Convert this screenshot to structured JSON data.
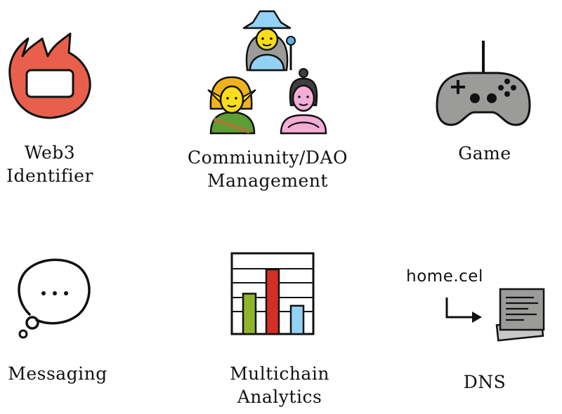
{
  "items": [
    {
      "label_lines": [
        "Web3",
        "Identifier"
      ],
      "icon": "name-badge-icon"
    },
    {
      "label_lines": [
        "Commiunity/DAO",
        "Management"
      ],
      "icon": "people-group-icon"
    },
    {
      "label_lines": [
        "Game"
      ],
      "icon": "game-controller-icon"
    },
    {
      "label_lines": [
        "Messaging"
      ],
      "icon": "thought-bubble-icon"
    },
    {
      "label_lines": [
        "Multichain",
        "Analytics"
      ],
      "icon": "bar-chart-icon"
    },
    {
      "label_lines": [
        "DNS"
      ],
      "icon": "document-icon"
    }
  ],
  "dns_domain": "home.cel",
  "colors": {
    "badge_red": "#e8604c",
    "chart_red": "#d22f27",
    "chart_green": "#8fb62b",
    "chart_blue": "#92d3f5",
    "controller_gray": "#9b9b9a",
    "skin_yellow": "#fadc1c",
    "skin_pink": "#f4aed4"
  },
  "chart_data": {
    "type": "bar",
    "categories": [
      "",
      "",
      ""
    ],
    "values": [
      2,
      3.2,
      1.4
    ]
  }
}
